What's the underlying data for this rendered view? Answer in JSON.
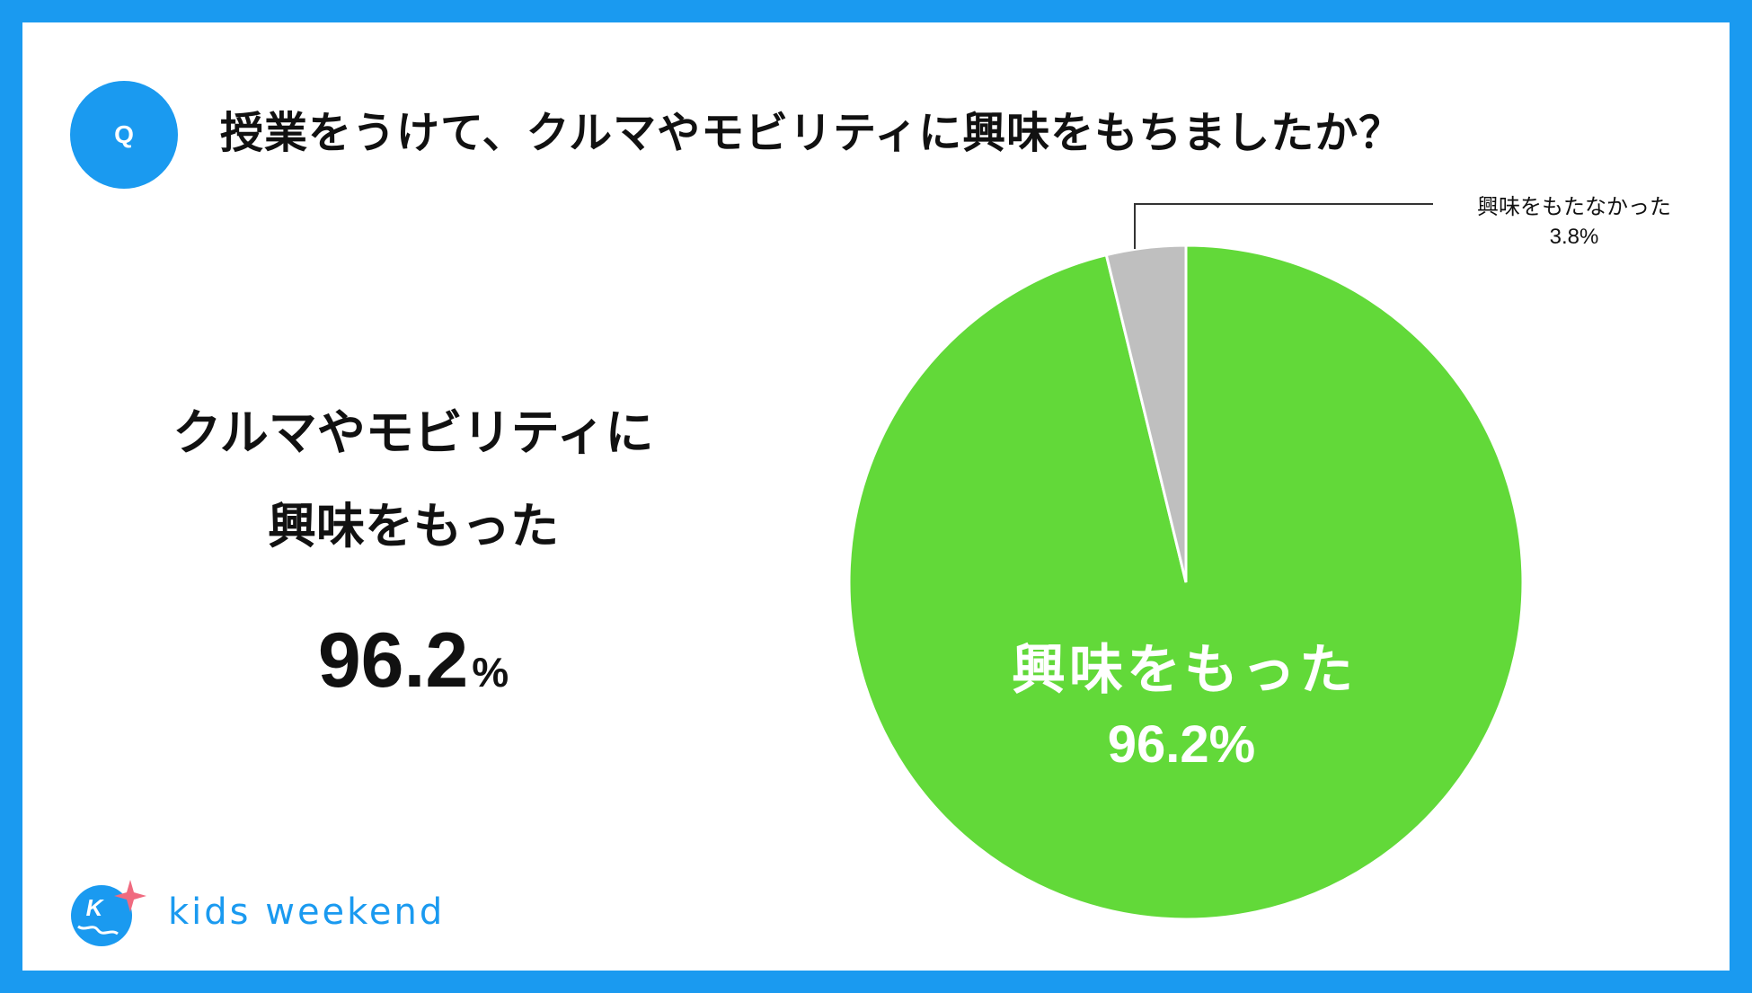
{
  "header": {
    "badge": "Q",
    "question": "授業をうけて、クルマやモビリティに興味をもちましたか？"
  },
  "summary": {
    "line1": "クルマやモビリティに",
    "line2": "興味をもった",
    "value": "96.2",
    "unit": "%"
  },
  "chart_data": {
    "type": "pie",
    "title": "",
    "slices": [
      {
        "label": "興味をもった",
        "value": 96.2,
        "display": "96.2%",
        "color": "#62d939"
      },
      {
        "label": "興味をもたなかった",
        "value": 3.8,
        "display": "3.8%",
        "color": "#bfbfbf"
      }
    ],
    "start": "12 o'clock",
    "direction": "clockwise",
    "legend": "none",
    "label_text_colors": [
      "#ffffff",
      "#111111"
    ]
  },
  "logo": {
    "text": "kids weekend",
    "mark": "K",
    "colors": {
      "primary": "#1a9af0",
      "star": "#f06a7f"
    }
  }
}
